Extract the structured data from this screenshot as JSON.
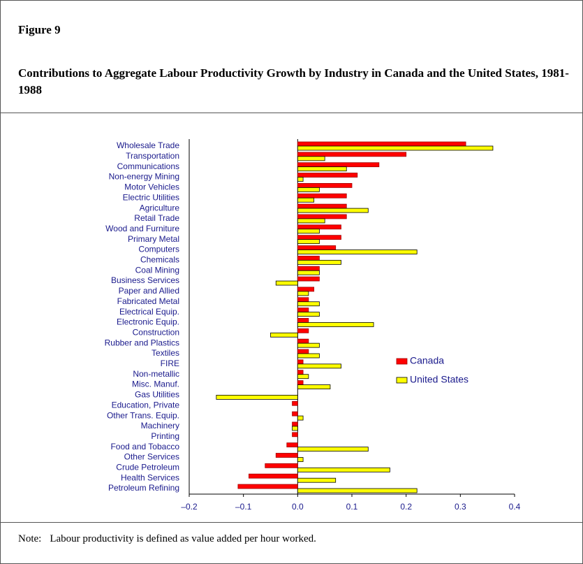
{
  "figure": "Figure 9",
  "note": {
    "label": "Note:",
    "text": "Labour productivity is defined as value added per hour worked."
  },
  "chart_data": {
    "type": "hbar",
    "title": "Contributions to Aggregate Labour Productivity Growth by Industry in Canada and the United States, 1981-1988",
    "categories": [
      "Wholesale Trade",
      "Transportation",
      "Communications",
      "Non-energy Mining",
      "Motor Vehicles",
      "Electric Utilities",
      "Agriculture",
      "Retail Trade",
      "Wood and Furniture",
      "Primary Metal",
      "Computers",
      "Chemicals",
      "Coal Mining",
      "Business Services",
      "Paper and Allied",
      "Fabricated Metal",
      "Electrical Equip.",
      "Electronic Equip.",
      "Construction",
      "Rubber and Plastics",
      "Textiles",
      "FIRE",
      "Non-metallic",
      "Misc. Manuf.",
      "Gas Utilities",
      "Education, Private",
      "Other Trans. Equip.",
      "Machinery",
      "Printing",
      "Food and Tobacco",
      "Other Services",
      "Crude Petroleum",
      "Health Services",
      "Petroleum Refining"
    ],
    "series": [
      {
        "name": "Canada",
        "color": "#ff0000",
        "values": [
          0.31,
          0.2,
          0.15,
          0.11,
          0.1,
          0.09,
          0.09,
          0.09,
          0.08,
          0.08,
          0.07,
          0.04,
          0.04,
          0.04,
          0.03,
          0.02,
          0.02,
          0.02,
          0.02,
          0.02,
          0.02,
          0.01,
          0.01,
          0.01,
          0,
          -0.01,
          -0.01,
          -0.01,
          -0.01,
          -0.02,
          -0.04,
          -0.06,
          -0.09,
          -0.11
        ]
      },
      {
        "name": "United States",
        "color": "#ffff00",
        "values": [
          0.36,
          0.05,
          0.09,
          0.01,
          0.04,
          0.03,
          0.13,
          0.05,
          0.04,
          0.04,
          0.22,
          0.08,
          0.04,
          -0.04,
          0.02,
          0.04,
          0.04,
          0.14,
          -0.05,
          0.04,
          0.04,
          0.08,
          0.02,
          0.06,
          -0.15,
          0,
          0.01,
          -0.01,
          0,
          0.13,
          0.01,
          0.17,
          0.07,
          0.22
        ]
      }
    ],
    "xlim": [
      -0.2,
      0.4
    ],
    "xticks": [
      {
        "value": -0.2,
        "label": "–0.2"
      },
      {
        "value": -0.1,
        "label": "–0.1"
      },
      {
        "value": 0,
        "label": "0.0"
      },
      0.1,
      0.2,
      0.3,
      0.4
    ],
    "legend": "right"
  }
}
